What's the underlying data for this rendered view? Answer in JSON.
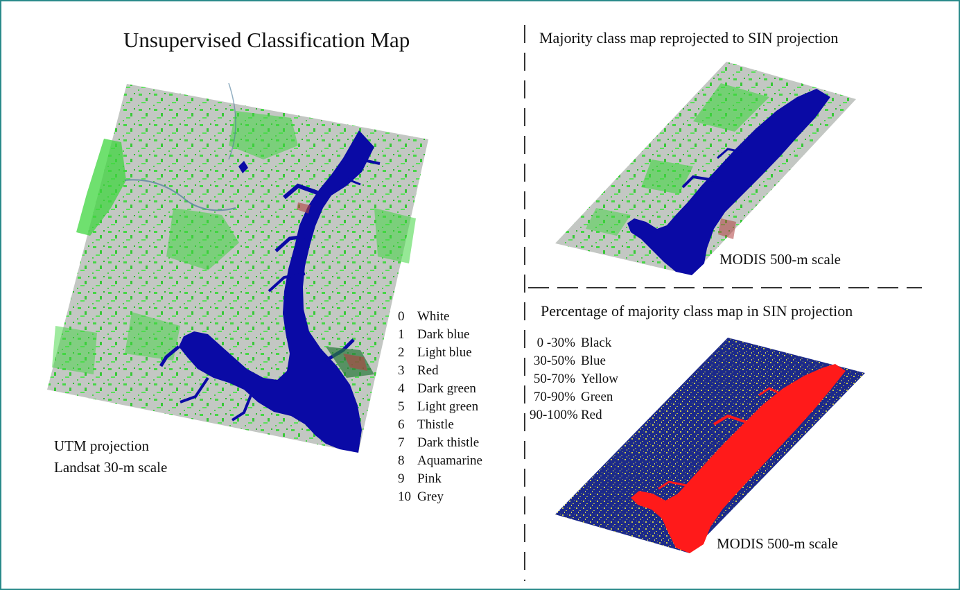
{
  "main": {
    "title": "Unsupervised Classification Map",
    "projection_label": "UTM projection",
    "scale_label": "Landsat 30-m scale"
  },
  "class_legend": [
    {
      "code": "0",
      "name": "White"
    },
    {
      "code": "1",
      "name": "Dark blue"
    },
    {
      "code": "2",
      "name": "Light blue"
    },
    {
      "code": "3",
      "name": "Red"
    },
    {
      "code": "4",
      "name": "Dark green"
    },
    {
      "code": "5",
      "name": "Light green"
    },
    {
      "code": "6",
      "name": "Thistle"
    },
    {
      "code": "7",
      "name": "Dark thistle"
    },
    {
      "code": "8",
      "name": "Aquamarine"
    },
    {
      "code": "9",
      "name": "Pink"
    },
    {
      "code": "10",
      "name": "Grey"
    }
  ],
  "majority_panel": {
    "title": "Majority class map reprojected to SIN projection",
    "scale_label": "MODIS 500-m scale"
  },
  "percentage_panel": {
    "title": "Percentage of majority class map in SIN projection",
    "scale_label": "MODIS 500-m scale",
    "legend": [
      {
        "range": "0 -30%",
        "color_name": "Black"
      },
      {
        "range": "30-50%",
        "color_name": "Blue"
      },
      {
        "range": "50-70%",
        "color_name": "Yellow"
      },
      {
        "range": "70-90%",
        "color_name": "Green"
      },
      {
        "range": "90-100%",
        "color_name": "Red"
      }
    ]
  },
  "colors": {
    "land_grey": "#c3c7c3",
    "vegetation_green": "#3fd63f",
    "water_blue": "#0a0aa5",
    "percent_bg_blue": "#1c2a8a",
    "percent_yellow": "#c9c94a",
    "percent_red": "#ff1a1a",
    "frame_teal": "#2a8a8a"
  }
}
